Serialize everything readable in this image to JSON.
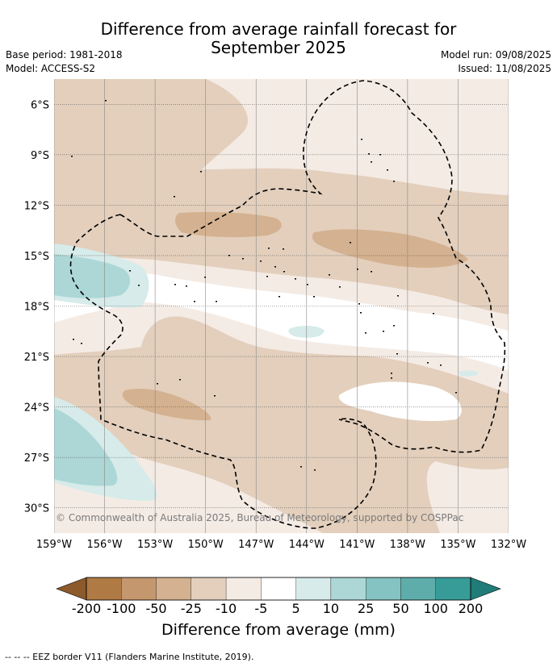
{
  "header": {
    "title_line1": "Difference from average rainfall forecast for",
    "title_line2": "September 2025",
    "base_period": "Base period: 1981-2018",
    "model": "Model: ACCESS-S2",
    "model_run": "Model run: 09/08/2025",
    "issued": "Issued: 11/08/2025"
  },
  "map": {
    "lat_labels": [
      "6°S",
      "9°S",
      "12°S",
      "15°S",
      "18°S",
      "21°S",
      "24°S",
      "27°S",
      "30°S"
    ],
    "lon_labels": [
      "159°W",
      "156°W",
      "153°W",
      "150°W",
      "147°W",
      "144°W",
      "141°W",
      "138°W",
      "135°W",
      "132°W"
    ],
    "copyright": "© Commonwealth of Australia 2025, Bureau of Meteorology, supported by COSPPac"
  },
  "legend": {
    "ticks": [
      "-200",
      "-100",
      "-50",
      "-25",
      "-10",
      "-5",
      "5",
      "10",
      "25",
      "50",
      "100",
      "200"
    ],
    "colors": [
      "#8c5a2b",
      "#b07a45",
      "#c4976e",
      "#d4b190",
      "#e3cfbc",
      "#f4ebe5",
      "#ffffff",
      "#d6ebea",
      "#acd7d6",
      "#84c3c1",
      "#5eadab",
      "#379c98",
      "#1f7c78"
    ],
    "label": "Difference from average (mm)"
  },
  "footnote": "--  --  -- EEZ border V11 (Flanders Marine Institute, 2019)."
}
